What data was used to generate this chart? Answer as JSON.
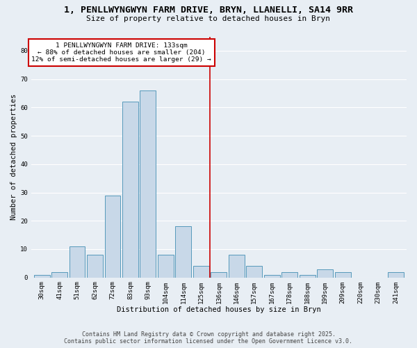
{
  "title_line1": "1, PENLLWYNGWYN FARM DRIVE, BRYN, LLANELLI, SA14 9RR",
  "title_line2": "Size of property relative to detached houses in Bryn",
  "xlabel": "Distribution of detached houses by size in Bryn",
  "ylabel": "Number of detached properties",
  "categories": [
    "30sqm",
    "41sqm",
    "51sqm",
    "62sqm",
    "72sqm",
    "83sqm",
    "93sqm",
    "104sqm",
    "114sqm",
    "125sqm",
    "136sqm",
    "146sqm",
    "157sqm",
    "167sqm",
    "178sqm",
    "188sqm",
    "199sqm",
    "209sqm",
    "220sqm",
    "230sqm",
    "241sqm"
  ],
  "values": [
    1,
    2,
    11,
    8,
    29,
    62,
    66,
    8,
    18,
    4,
    2,
    8,
    4,
    1,
    2,
    1,
    3,
    2,
    0,
    0,
    2
  ],
  "bar_color": "#c8d8e8",
  "bar_edge_color": "#5599bb",
  "vline_x_index": 10,
  "vline_color": "#cc0000",
  "annotation_line1": "1 PENLLWYNGWYN FARM DRIVE: 133sqm",
  "annotation_line2": "← 88% of detached houses are smaller (204)",
  "annotation_line3": "12% of semi-detached houses are larger (29) →",
  "annotation_box_color": "#cc0000",
  "ylim": [
    0,
    85
  ],
  "yticks": [
    0,
    10,
    20,
    30,
    40,
    50,
    60,
    70,
    80
  ],
  "background_color": "#e8eef4",
  "footer_line1": "Contains HM Land Registry data © Crown copyright and database right 2025.",
  "footer_line2": "Contains public sector information licensed under the Open Government Licence v3.0.",
  "grid_color": "#ffffff",
  "title_fontsize": 9.5,
  "subtitle_fontsize": 8,
  "axis_label_fontsize": 7.5,
  "tick_fontsize": 6.5,
  "annotation_fontsize": 6.8,
  "footer_fontsize": 6.0
}
